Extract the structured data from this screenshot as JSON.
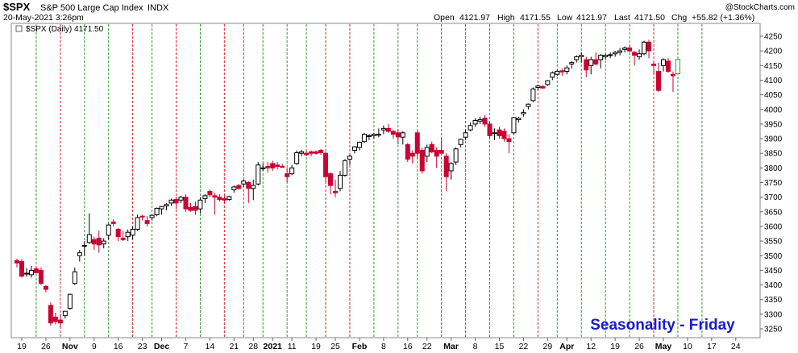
{
  "header": {
    "symbol": "$SPX",
    "name": "S&P 500 Large Cap Index",
    "exchange": "INDX",
    "datetime": "20-May-2021 3:26pm",
    "source": "@StockCharts.com",
    "open_label": "Open",
    "open": "4121.97",
    "high_label": "High",
    "high": "4171.55",
    "low_label": "Low",
    "low": "4121.97",
    "last_label": "Last",
    "last": "4171.50",
    "chg_label": "Chg",
    "chg": "+55.82 (+1.36%)",
    "legend": "$SPX (Daily) 4171.50"
  },
  "annotation": "Seasonality - Friday",
  "colors": {
    "up": "#000000",
    "down": "#cc0033",
    "last_bar": "#22aa22",
    "green_line": "#2a9a2a",
    "red_line": "#dd2222",
    "annotation": "#1a1ad0"
  },
  "chart_data": {
    "type": "candlestick",
    "title": "$SPX S&P 500 Large Cap Index INDX",
    "y_label": "",
    "ylim": [
      3220,
      4262
    ],
    "y_ticks": [
      3250,
      3300,
      3350,
      3400,
      3450,
      3500,
      3550,
      3600,
      3650,
      3700,
      3750,
      3800,
      3850,
      3900,
      3950,
      4000,
      4050,
      4100,
      4150,
      4200,
      4250
    ],
    "x_tick_labels": [
      {
        "i": 1,
        "label": "19"
      },
      {
        "i": 6,
        "label": "26"
      },
      {
        "i": 11,
        "label": "Nov"
      },
      {
        "i": 16,
        "label": "9"
      },
      {
        "i": 21,
        "label": "16"
      },
      {
        "i": 26,
        "label": "23"
      },
      {
        "i": 30,
        "label": "Dec"
      },
      {
        "i": 35,
        "label": "7"
      },
      {
        "i": 40,
        "label": "14"
      },
      {
        "i": 45,
        "label": "21"
      },
      {
        "i": 49,
        "label": "28"
      },
      {
        "i": 53,
        "label": "2021"
      },
      {
        "i": 57,
        "label": "11"
      },
      {
        "i": 62,
        "label": "19"
      },
      {
        "i": 66,
        "label": "25"
      },
      {
        "i": 71,
        "label": "Feb"
      },
      {
        "i": 76,
        "label": "8"
      },
      {
        "i": 81,
        "label": "16"
      },
      {
        "i": 85,
        "label": "22"
      },
      {
        "i": 90,
        "label": "Mar"
      },
      {
        "i": 95,
        "label": "8"
      },
      {
        "i": 100,
        "label": "15"
      },
      {
        "i": 105,
        "label": "22"
      },
      {
        "i": 110,
        "label": "29"
      },
      {
        "i": 114,
        "label": "Apr"
      },
      {
        "i": 119,
        "label": "12"
      },
      {
        "i": 124,
        "label": "19"
      },
      {
        "i": 129,
        "label": "26"
      },
      {
        "i": 134,
        "label": "May"
      },
      {
        "i": 139,
        "label": "10"
      },
      {
        "i": 144,
        "label": "17"
      },
      {
        "i": 149,
        "label": "24"
      }
    ],
    "friday_lines": [
      {
        "i": 4,
        "color": "green"
      },
      {
        "i": 9,
        "color": "red"
      },
      {
        "i": 14,
        "color": "green"
      },
      {
        "i": 19,
        "color": "green"
      },
      {
        "i": 24,
        "color": "red"
      },
      {
        "i": 28,
        "color": "green"
      },
      {
        "i": 33,
        "color": "red"
      },
      {
        "i": 38,
        "color": "green"
      },
      {
        "i": 43,
        "color": "red"
      },
      {
        "i": 47,
        "color": "red"
      },
      {
        "i": 51,
        "color": "green"
      },
      {
        "i": 56,
        "color": "green"
      },
      {
        "i": 60,
        "color": "green"
      },
      {
        "i": 64,
        "color": "red"
      },
      {
        "i": 69,
        "color": "red"
      },
      {
        "i": 74,
        "color": "green"
      },
      {
        "i": 79,
        "color": "green"
      },
      {
        "i": 83,
        "color": "green"
      },
      {
        "i": 88,
        "color": "red"
      },
      {
        "i": 93,
        "color": "red"
      },
      {
        "i": 98,
        "color": "green"
      },
      {
        "i": 103,
        "color": "green"
      },
      {
        "i": 108,
        "color": "red"
      },
      {
        "i": 112,
        "color": "green"
      },
      {
        "i": 117,
        "color": "green"
      },
      {
        "i": 122,
        "color": "green"
      },
      {
        "i": 127,
        "color": "green"
      },
      {
        "i": 132,
        "color": "red"
      },
      {
        "i": 137,
        "color": "green"
      },
      {
        "i": 142,
        "color": "green"
      }
    ],
    "candles": [
      {
        "o": 3483,
        "h": 3490,
        "l": 3460,
        "c": 3475
      },
      {
        "o": 3480,
        "h": 3490,
        "l": 3425,
        "c": 3430
      },
      {
        "o": 3440,
        "h": 3458,
        "l": 3428,
        "c": 3440
      },
      {
        "o": 3435,
        "h": 3465,
        "l": 3425,
        "c": 3450
      },
      {
        "o": 3455,
        "h": 3465,
        "l": 3438,
        "c": 3442
      },
      {
        "o": 3450,
        "h": 3460,
        "l": 3400,
        "c": 3405
      },
      {
        "o": 3395,
        "h": 3400,
        "l": 3375,
        "c": 3385
      },
      {
        "o": 3330,
        "h": 3340,
        "l": 3260,
        "c": 3270
      },
      {
        "o": 3290,
        "h": 3305,
        "l": 3265,
        "c": 3275
      },
      {
        "o": 3280,
        "h": 3300,
        "l": 3255,
        "c": 3270
      },
      {
        "o": 3295,
        "h": 3310,
        "l": 3285,
        "c": 3310
      },
      {
        "o": 3320,
        "h": 3370,
        "l": 3315,
        "c": 3368
      },
      {
        "o": 3405,
        "h": 3460,
        "l": 3400,
        "c": 3445
      },
      {
        "o": 3500,
        "h": 3520,
        "l": 3480,
        "c": 3510
      },
      {
        "o": 3535,
        "h": 3550,
        "l": 3500,
        "c": 3535
      },
      {
        "o": 3545,
        "h": 3645,
        "l": 3540,
        "c": 3572
      },
      {
        "o": 3555,
        "h": 3565,
        "l": 3520,
        "c": 3540
      },
      {
        "o": 3560,
        "h": 3585,
        "l": 3510,
        "c": 3537
      },
      {
        "o": 3540,
        "h": 3560,
        "l": 3525,
        "c": 3550
      },
      {
        "o": 3570,
        "h": 3610,
        "l": 3555,
        "c": 3605
      },
      {
        "o": 3615,
        "h": 3625,
        "l": 3600,
        "c": 3610
      },
      {
        "o": 3590,
        "h": 3595,
        "l": 3550,
        "c": 3565
      },
      {
        "o": 3560,
        "h": 3585,
        "l": 3550,
        "c": 3555
      },
      {
        "o": 3565,
        "h": 3590,
        "l": 3550,
        "c": 3580
      },
      {
        "o": 3570,
        "h": 3600,
        "l": 3555,
        "c": 3590
      },
      {
        "o": 3590,
        "h": 3640,
        "l": 3585,
        "c": 3630
      },
      {
        "o": 3635,
        "h": 3640,
        "l": 3620,
        "c": 3632
      },
      {
        "o": 3620,
        "h": 3635,
        "l": 3600,
        "c": 3610
      },
      {
        "o": 3630,
        "h": 3640,
        "l": 3620,
        "c": 3638
      },
      {
        "o": 3640,
        "h": 3665,
        "l": 3635,
        "c": 3662
      },
      {
        "o": 3660,
        "h": 3670,
        "l": 3640,
        "c": 3668
      },
      {
        "o": 3670,
        "h": 3680,
        "l": 3655,
        "c": 3675
      },
      {
        "o": 3680,
        "h": 3695,
        "l": 3670,
        "c": 3690
      },
      {
        "o": 3692,
        "h": 3702,
        "l": 3660,
        "c": 3680
      },
      {
        "o": 3690,
        "h": 3705,
        "l": 3680,
        "c": 3700
      },
      {
        "o": 3700,
        "h": 3710,
        "l": 3650,
        "c": 3660
      },
      {
        "o": 3665,
        "h": 3680,
        "l": 3650,
        "c": 3655
      },
      {
        "o": 3668,
        "h": 3685,
        "l": 3640,
        "c": 3655
      },
      {
        "o": 3660,
        "h": 3700,
        "l": 3645,
        "c": 3690
      },
      {
        "o": 3695,
        "h": 3710,
        "l": 3680,
        "c": 3705
      },
      {
        "o": 3720,
        "h": 3725,
        "l": 3700,
        "c": 3708
      },
      {
        "o": 3705,
        "h": 3715,
        "l": 3640,
        "c": 3700
      },
      {
        "o": 3700,
        "h": 3710,
        "l": 3685,
        "c": 3692
      },
      {
        "o": 3695,
        "h": 3705,
        "l": 3680,
        "c": 3690
      },
      {
        "o": 3692,
        "h": 3705,
        "l": 3688,
        "c": 3702
      },
      {
        "o": 3725,
        "h": 3740,
        "l": 3715,
        "c": 3735
      },
      {
        "o": 3740,
        "h": 3745,
        "l": 3725,
        "c": 3730
      },
      {
        "o": 3745,
        "h": 3760,
        "l": 3735,
        "c": 3755
      },
      {
        "o": 3750,
        "h": 3755,
        "l": 3680,
        "c": 3730
      },
      {
        "o": 3730,
        "h": 3760,
        "l": 3690,
        "c": 3740
      },
      {
        "o": 3745,
        "h": 3820,
        "l": 3740,
        "c": 3810
      },
      {
        "o": 3800,
        "h": 3815,
        "l": 3790,
        "c": 3800
      },
      {
        "o": 3805,
        "h": 3820,
        "l": 3785,
        "c": 3800
      },
      {
        "o": 3815,
        "h": 3825,
        "l": 3790,
        "c": 3800
      },
      {
        "o": 3810,
        "h": 3820,
        "l": 3795,
        "c": 3805
      },
      {
        "o": 3805,
        "h": 3815,
        "l": 3800,
        "c": 3803
      },
      {
        "o": 3780,
        "h": 3800,
        "l": 3750,
        "c": 3770
      },
      {
        "o": 3780,
        "h": 3810,
        "l": 3775,
        "c": 3800
      },
      {
        "o": 3815,
        "h": 3860,
        "l": 3810,
        "c": 3852
      },
      {
        "o": 3850,
        "h": 3862,
        "l": 3840,
        "c": 3855
      },
      {
        "o": 3850,
        "h": 3860,
        "l": 3840,
        "c": 3845
      },
      {
        "o": 3855,
        "h": 3860,
        "l": 3840,
        "c": 3850
      },
      {
        "o": 3855,
        "h": 3860,
        "l": 3845,
        "c": 3850
      },
      {
        "o": 3860,
        "h": 3865,
        "l": 3845,
        "c": 3852
      },
      {
        "o": 3850,
        "h": 3855,
        "l": 3750,
        "c": 3770
      },
      {
        "o": 3780,
        "h": 3785,
        "l": 3710,
        "c": 3740
      },
      {
        "o": 3720,
        "h": 3760,
        "l": 3700,
        "c": 3715
      },
      {
        "o": 3730,
        "h": 3790,
        "l": 3720,
        "c": 3775
      },
      {
        "o": 3775,
        "h": 3830,
        "l": 3770,
        "c": 3825
      },
      {
        "o": 3830,
        "h": 3845,
        "l": 3810,
        "c": 3840
      },
      {
        "o": 3860,
        "h": 3875,
        "l": 3850,
        "c": 3872
      },
      {
        "o": 3870,
        "h": 3890,
        "l": 3860,
        "c": 3888
      },
      {
        "o": 3890,
        "h": 3920,
        "l": 3885,
        "c": 3915
      },
      {
        "o": 3910,
        "h": 3915,
        "l": 3895,
        "c": 3910
      },
      {
        "o": 3910,
        "h": 3920,
        "l": 3900,
        "c": 3915
      },
      {
        "o": 3915,
        "h": 3935,
        "l": 3905,
        "c": 3915
      },
      {
        "o": 3930,
        "h": 3945,
        "l": 3915,
        "c": 3935
      },
      {
        "o": 3935,
        "h": 3950,
        "l": 3920,
        "c": 3925
      },
      {
        "o": 3925,
        "h": 3930,
        "l": 3900,
        "c": 3915
      },
      {
        "o": 3920,
        "h": 3932,
        "l": 3880,
        "c": 3906
      },
      {
        "o": 3905,
        "h": 3925,
        "l": 3880,
        "c": 3920
      },
      {
        "o": 3880,
        "h": 3885,
        "l": 3820,
        "c": 3830
      },
      {
        "o": 3850,
        "h": 3860,
        "l": 3815,
        "c": 3840
      },
      {
        "o": 3920,
        "h": 3928,
        "l": 3830,
        "c": 3850
      },
      {
        "o": 3860,
        "h": 3870,
        "l": 3780,
        "c": 3790
      },
      {
        "o": 3840,
        "h": 3880,
        "l": 3820,
        "c": 3870
      },
      {
        "o": 3880,
        "h": 3890,
        "l": 3850,
        "c": 3855
      },
      {
        "o": 3860,
        "h": 3870,
        "l": 3800,
        "c": 3840
      },
      {
        "o": 3860,
        "h": 3900,
        "l": 3855,
        "c": 3850
      },
      {
        "o": 3840,
        "h": 3850,
        "l": 3720,
        "c": 3770
      },
      {
        "o": 3790,
        "h": 3820,
        "l": 3760,
        "c": 3815
      },
      {
        "o": 3820,
        "h": 3870,
        "l": 3810,
        "c": 3865
      },
      {
        "o": 3880,
        "h": 3900,
        "l": 3870,
        "c": 3898
      },
      {
        "o": 3905,
        "h": 3930,
        "l": 3895,
        "c": 3920
      },
      {
        "o": 3930,
        "h": 3955,
        "l": 3925,
        "c": 3945
      },
      {
        "o": 3950,
        "h": 3970,
        "l": 3940,
        "c": 3962
      },
      {
        "o": 3960,
        "h": 3975,
        "l": 3950,
        "c": 3965
      },
      {
        "o": 3970,
        "h": 3980,
        "l": 3940,
        "c": 3950
      },
      {
        "o": 3950,
        "h": 3960,
        "l": 3900,
        "c": 3910
      },
      {
        "o": 3920,
        "h": 3935,
        "l": 3895,
        "c": 3920
      },
      {
        "o": 3930,
        "h": 3940,
        "l": 3900,
        "c": 3910
      },
      {
        "o": 3925,
        "h": 3935,
        "l": 3890,
        "c": 3900
      },
      {
        "o": 3900,
        "h": 3915,
        "l": 3850,
        "c": 3890
      },
      {
        "o": 3920,
        "h": 3975,
        "l": 3915,
        "c": 3972
      },
      {
        "o": 3965,
        "h": 3975,
        "l": 3955,
        "c": 3970
      },
      {
        "o": 3985,
        "h": 4000,
        "l": 3975,
        "c": 3990
      },
      {
        "o": 4010,
        "h": 4020,
        "l": 4000,
        "c": 4018
      },
      {
        "o": 4030,
        "h": 4075,
        "l": 4025,
        "c": 4070
      },
      {
        "o": 4075,
        "h": 4085,
        "l": 4065,
        "c": 4080
      },
      {
        "o": 4078,
        "h": 4083,
        "l": 4070,
        "c": 4073
      },
      {
        "o": 4085,
        "h": 4100,
        "l": 4080,
        "c": 4098
      },
      {
        "o": 4110,
        "h": 4130,
        "l": 4100,
        "c": 4125
      },
      {
        "o": 4120,
        "h": 4135,
        "l": 4115,
        "c": 4130
      },
      {
        "o": 4132,
        "h": 4140,
        "l": 4115,
        "c": 4128
      },
      {
        "o": 4130,
        "h": 4150,
        "l": 4120,
        "c": 4142
      },
      {
        "o": 4155,
        "h": 4165,
        "l": 4140,
        "c": 4160
      },
      {
        "o": 4170,
        "h": 4185,
        "l": 4160,
        "c": 4180
      },
      {
        "o": 4180,
        "h": 4195,
        "l": 4160,
        "c": 4185
      },
      {
        "o": 4170,
        "h": 4180,
        "l": 4110,
        "c": 4135
      },
      {
        "o": 4150,
        "h": 4180,
        "l": 4120,
        "c": 4170
      },
      {
        "o": 4170,
        "h": 4195,
        "l": 4150,
        "c": 4155
      },
      {
        "o": 4170,
        "h": 4190,
        "l": 4140,
        "c": 4185
      },
      {
        "o": 4180,
        "h": 4190,
        "l": 4170,
        "c": 4185
      },
      {
        "o": 4185,
        "h": 4195,
        "l": 4175,
        "c": 4187
      },
      {
        "o": 4190,
        "h": 4200,
        "l": 4180,
        "c": 4195
      },
      {
        "o": 4195,
        "h": 4210,
        "l": 4185,
        "c": 4200
      },
      {
        "o": 4205,
        "h": 4215,
        "l": 4195,
        "c": 4210
      },
      {
        "o": 4210,
        "h": 4220,
        "l": 4195,
        "c": 4200
      },
      {
        "o": 4195,
        "h": 4200,
        "l": 4150,
        "c": 4185
      },
      {
        "o": 4180,
        "h": 4205,
        "l": 4170,
        "c": 4190
      },
      {
        "o": 4190,
        "h": 4235,
        "l": 4185,
        "c": 4230
      },
      {
        "o": 4230,
        "h": 4238,
        "l": 4175,
        "c": 4200
      },
      {
        "o": 4155,
        "h": 4160,
        "l": 4120,
        "c": 4150
      },
      {
        "o": 4130,
        "h": 4160,
        "l": 4060,
        "c": 4065
      },
      {
        "o": 4150,
        "h": 4175,
        "l": 4130,
        "c": 4170
      },
      {
        "o": 4165,
        "h": 4175,
        "l": 4125,
        "c": 4130
      },
      {
        "o": 4120,
        "h": 4130,
        "l": 4060,
        "c": 4115
      },
      {
        "o": 4122,
        "h": 4172,
        "l": 4122,
        "c": 4171
      }
    ]
  }
}
